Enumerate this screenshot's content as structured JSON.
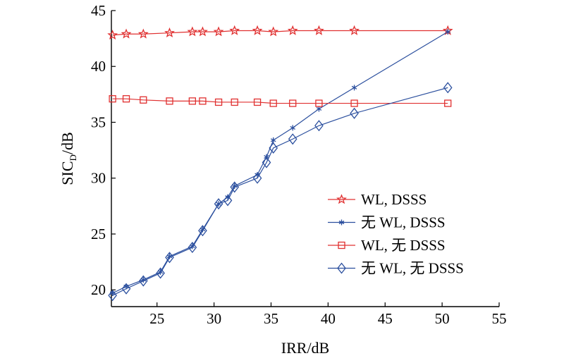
{
  "chart_data": {
    "type": "line",
    "xlabel": "IRR/dB",
    "ylabel": {
      "main": "SIC",
      "sub": "D",
      "suffix": "/dB"
    },
    "xlim": [
      21,
      55
    ],
    "ylim": [
      18.5,
      45
    ],
    "xticks": [
      25,
      30,
      35,
      40,
      45,
      50,
      55
    ],
    "yticks": [
      20,
      25,
      30,
      35,
      40,
      45
    ],
    "grid": false,
    "legend_position": "center-right",
    "series": [
      {
        "name": "WL, DSSS",
        "color": "#e03030",
        "marker": "star",
        "x": [
          21.1,
          22.3,
          23.8,
          26.1,
          28.1,
          29.0,
          30.4,
          31.8,
          33.8,
          35.2,
          36.9,
          39.2,
          42.3,
          50.5
        ],
        "y": [
          42.8,
          42.9,
          42.9,
          43.0,
          43.1,
          43.1,
          43.1,
          43.2,
          43.2,
          43.1,
          43.2,
          43.2,
          43.2,
          43.2
        ]
      },
      {
        "name": "无 WL, DSSS",
        "color": "#2b4f9e",
        "marker": "asterisk",
        "x": [
          21.1,
          22.3,
          23.8,
          25.3,
          26.1,
          28.1,
          29.0,
          30.4,
          31.2,
          31.8,
          33.8,
          34.6,
          35.2,
          36.9,
          39.2,
          42.3,
          50.5
        ],
        "y": [
          19.7,
          20.3,
          20.9,
          21.6,
          23.0,
          23.9,
          25.4,
          27.7,
          28.3,
          29.3,
          30.3,
          31.9,
          33.4,
          34.5,
          36.2,
          38.1,
          43.1
        ]
      },
      {
        "name": "WL, 无 DSSS",
        "color": "#e03030",
        "marker": "square",
        "x": [
          21.1,
          22.3,
          23.8,
          26.1,
          28.1,
          29.0,
          30.4,
          31.8,
          33.8,
          35.2,
          36.9,
          39.2,
          42.3,
          50.5
        ],
        "y": [
          37.1,
          37.1,
          37.0,
          36.9,
          36.9,
          36.9,
          36.8,
          36.8,
          36.8,
          36.7,
          36.7,
          36.7,
          36.7,
          36.7
        ]
      },
      {
        "name": "无 WL, 无 DSSS",
        "color": "#2b4f9e",
        "marker": "diamond",
        "x": [
          21.1,
          22.3,
          23.8,
          25.3,
          26.1,
          28.1,
          29.0,
          30.4,
          31.2,
          31.8,
          33.8,
          34.6,
          35.2,
          36.9,
          39.2,
          42.3,
          50.5
        ],
        "y": [
          19.5,
          20.1,
          20.8,
          21.5,
          22.9,
          23.8,
          25.3,
          27.7,
          28.0,
          29.2,
          30.0,
          31.4,
          32.7,
          33.5,
          34.7,
          35.8,
          38.1
        ]
      }
    ]
  }
}
